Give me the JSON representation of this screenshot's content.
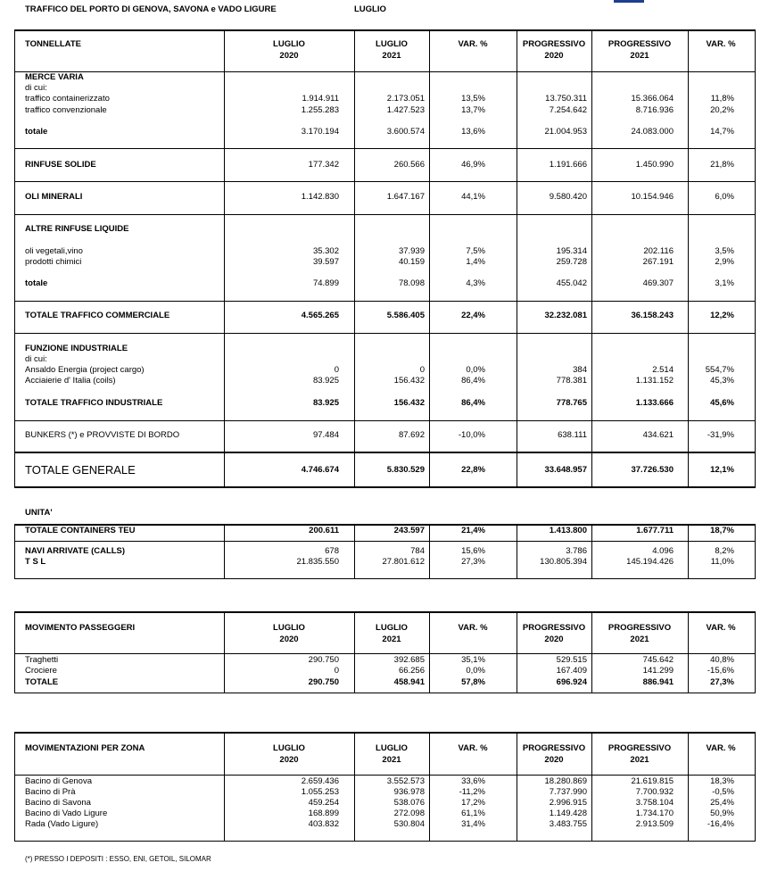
{
  "header": {
    "title": "TRAFFICO DEL PORTO DI GENOVA, SAVONA e VADO LIGURE",
    "month": "LUGLIO"
  },
  "tonnage": {
    "columns": [
      [
        "TONNELLATE"
      ],
      [
        "LUGLIO",
        "2020"
      ],
      [
        "LUGLIO",
        "2021"
      ],
      [
        "VAR. %"
      ],
      [
        "PROGRESSIVO",
        "2020"
      ],
      [
        "PROGRESSIVO",
        "2021"
      ],
      [
        "VAR. %"
      ]
    ],
    "groups": [
      {
        "rows": [
          [
            "MERCE VARIA"
          ],
          [
            "di cui:"
          ],
          [
            "traffico containerizzato",
            "1.914.911",
            "2.173.051",
            "13,5%",
            "13.750.311",
            "15.366.064",
            "11,8%"
          ],
          [
            "traffico convenzionale",
            "1.255.283",
            "1.427.523",
            "13,7%",
            "7.254.642",
            "8.716.936",
            "20,2%"
          ],
          [
            "totale",
            "3.170.194",
            "3.600.574",
            "13,6%",
            "21.004.953",
            "24.083.000",
            "14,7%"
          ]
        ]
      },
      {
        "rows": [
          [
            "RINFUSE SOLIDE",
            "177.342",
            "260.566",
            "46,9%",
            "1.191.666",
            "1.450.990",
            "21,8%"
          ]
        ]
      },
      {
        "rows": [
          [
            "OLI MINERALI",
            "1.142.830",
            "1.647.167",
            "44,1%",
            "9.580.420",
            "10.154.946",
            "6,0%"
          ]
        ]
      },
      {
        "rows": [
          [
            "ALTRE RINFUSE LIQUIDE"
          ],
          [
            "oli vegetali,vino",
            "35.302",
            "37.939",
            "7,5%",
            "195.314",
            "202.116",
            "3,5%"
          ],
          [
            "prodotti chimici",
            "39.597",
            "40.159",
            "1,4%",
            "259.728",
            "267.191",
            "2,9%"
          ],
          [
            "totale",
            "74.899",
            "78.098",
            "4,3%",
            "455.042",
            "469.307",
            "3,1%"
          ]
        ]
      },
      {
        "rows": [
          [
            "TOTALE TRAFFICO COMMERCIALE",
            "4.565.265",
            "5.586.405",
            "22,4%",
            "32.232.081",
            "36.158.243",
            "12,2%"
          ]
        ]
      },
      {
        "rows": [
          [
            "FUNZIONE INDUSTRIALE"
          ],
          [
            "di cui:"
          ],
          [
            "Ansaldo Energia (project cargo)",
            "0",
            "0",
            "0,0%",
            "384",
            "2.514",
            "554,7%"
          ],
          [
            "Acciaierie d' Italia (coils)",
            "83.925",
            "156.432",
            "86,4%",
            "778.381",
            "1.131.152",
            "45,3%"
          ],
          [
            "TOTALE TRAFFICO INDUSTRIALE",
            "83.925",
            "156.432",
            "86,4%",
            "778.765",
            "1.133.666",
            "45,6%"
          ]
        ]
      },
      {
        "rows": [
          [
            "BUNKERS (*) e PROVVISTE DI BORDO",
            "97.484",
            "87.692",
            "-10,0%",
            "638.111",
            "434.621",
            "-31,9%"
          ]
        ]
      },
      {
        "rows": [
          [
            "TOTALE GENERALE",
            "4.746.674",
            "5.830.529",
            "22,8%",
            "33.648.957",
            "37.726.530",
            "12,1%"
          ]
        ]
      }
    ]
  },
  "units": {
    "title": "UNITA'",
    "rows": [
      [
        "TOTALE CONTAINERS TEU",
        "200.611",
        "243.597",
        "21,4%",
        "1.413.800",
        "1.677.711",
        "18,7%"
      ],
      [
        "NAVI ARRIVATE (CALLS)",
        "678",
        "784",
        "15,6%",
        "3.786",
        "4.096",
        "8,2%"
      ],
      [
        "T S L",
        "21.835.550",
        "27.801.612",
        "27,3%",
        "130.805.394",
        "145.194.426",
        "11,0%"
      ]
    ]
  },
  "passengers": {
    "columns": [
      [
        "MOVIMENTO PASSEGGERI"
      ],
      [
        "LUGLIO",
        "2020"
      ],
      [
        "LUGLIO",
        "2021"
      ],
      [
        "VAR. %"
      ],
      [
        "PROGRESSIVO",
        "2020"
      ],
      [
        "PROGRESSIVO",
        "2021"
      ],
      [
        "VAR. %"
      ]
    ],
    "rows": [
      [
        "Traghetti",
        "290.750",
        "392.685",
        "35,1%",
        "529.515",
        "745.642",
        "40,8%"
      ],
      [
        "Crociere",
        "0",
        "66.256",
        "0,0%",
        "167.409",
        "141.299",
        "-15,6%"
      ],
      [
        "TOTALE",
        "290.750",
        "458.941",
        "57,8%",
        "696.924",
        "886.941",
        "27,3%"
      ]
    ]
  },
  "zones": {
    "columns": [
      [
        "MOVIMENTAZIONI PER ZONA"
      ],
      [
        "LUGLIO",
        "2020"
      ],
      [
        "LUGLIO",
        "2021"
      ],
      [
        "VAR. %"
      ],
      [
        "PROGRESSIVO",
        "2020"
      ],
      [
        "PROGRESSIVO",
        "2021"
      ],
      [
        "VAR. %"
      ]
    ],
    "rows": [
      [
        "Bacino di Genova",
        "2.659.436",
        "3.552.573",
        "33,6%",
        "18.280.869",
        "21.619.815",
        "18,3%"
      ],
      [
        "Bacino di Prà",
        "1.055.253",
        "936.978",
        "-11,2%",
        "7.737.990",
        "7.700.932",
        "-0,5%"
      ],
      [
        "Bacino di Savona",
        "459.254",
        "538.076",
        "17,2%",
        "2.996.915",
        "3.758.104",
        "25,4%"
      ],
      [
        "Bacino di Vado Ligure",
        "168.899",
        "272.098",
        "61,1%",
        "1.149.428",
        "1.734.170",
        "50,9%"
      ],
      [
        "Rada (Vado Ligure)",
        "403.832",
        "530.804",
        "31,4%",
        "3.483.755",
        "2.913.509",
        "-16,4%"
      ]
    ]
  },
  "footnote": "(*) PRESSO I DEPOSITI : ESSO, ENI, GETOIL, SILOMAR"
}
